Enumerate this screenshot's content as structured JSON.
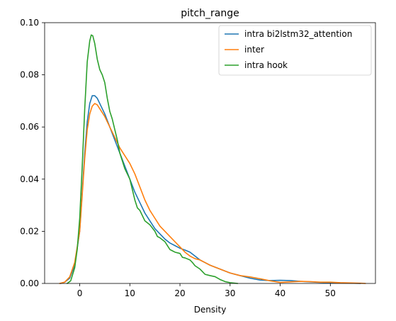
{
  "chart_data": {
    "type": "line",
    "title": "pitch_range",
    "xlabel": "Density",
    "ylabel": "",
    "xlim": [
      -7,
      59
    ],
    "ylim": [
      0,
      0.1
    ],
    "x_ticks": [
      0,
      10,
      20,
      30,
      40,
      50
    ],
    "y_ticks": [
      0.0,
      0.02,
      0.04,
      0.06,
      0.08,
      0.1
    ],
    "x_tick_labels": [
      "0",
      "10",
      "20",
      "30",
      "40",
      "50"
    ],
    "y_tick_labels": [
      "0.00",
      "0.02",
      "0.04",
      "0.06",
      "0.08",
      "0.10"
    ],
    "grid": false,
    "legend_position": "top-right",
    "series": [
      {
        "name": "intra bi2lstm32_attention",
        "color": "#1f77b4",
        "points": [
          [
            -3.8,
            0
          ],
          [
            -3,
            0.0005
          ],
          [
            -2,
            0.002
          ],
          [
            -1,
            0.007
          ],
          [
            0,
            0.02
          ],
          [
            0.5,
            0.035
          ],
          [
            1,
            0.05
          ],
          [
            1.5,
            0.062
          ],
          [
            2,
            0.069
          ],
          [
            2.5,
            0.072
          ],
          [
            3,
            0.072
          ],
          [
            3.5,
            0.071
          ],
          [
            4,
            0.069
          ],
          [
            5,
            0.065
          ],
          [
            6,
            0.06
          ],
          [
            7,
            0.055
          ],
          [
            8,
            0.05
          ],
          [
            9,
            0.045
          ],
          [
            10,
            0.04
          ],
          [
            11,
            0.035
          ],
          [
            12,
            0.031
          ],
          [
            13,
            0.027
          ],
          [
            14,
            0.024
          ],
          [
            15,
            0.021
          ],
          [
            16,
            0.019
          ],
          [
            17,
            0.017
          ],
          [
            18,
            0.0155
          ],
          [
            19,
            0.0145
          ],
          [
            20,
            0.0135
          ],
          [
            21,
            0.0128
          ],
          [
            22,
            0.012
          ],
          [
            23,
            0.0105
          ],
          [
            24,
            0.009
          ],
          [
            25,
            0.008
          ],
          [
            26,
            0.007
          ],
          [
            28,
            0.0055
          ],
          [
            30,
            0.004
          ],
          [
            32,
            0.003
          ],
          [
            34,
            0.002
          ],
          [
            36,
            0.0013
          ],
          [
            38,
            0.0011
          ],
          [
            40,
            0.0012
          ],
          [
            42,
            0.0011
          ],
          [
            44,
            0.0008
          ],
          [
            46,
            0.0006
          ],
          [
            48,
            0.0004
          ],
          [
            50,
            0.0003
          ],
          [
            52,
            0.0002
          ],
          [
            54,
            0.0001
          ],
          [
            56,
            0
          ]
        ]
      },
      {
        "name": "inter",
        "color": "#ff7f0e",
        "points": [
          [
            -4,
            0
          ],
          [
            -3,
            0.0005
          ],
          [
            -2,
            0.0025
          ],
          [
            -1,
            0.008
          ],
          [
            0,
            0.02
          ],
          [
            0.5,
            0.034
          ],
          [
            1,
            0.048
          ],
          [
            1.5,
            0.059
          ],
          [
            2,
            0.065
          ],
          [
            2.5,
            0.068
          ],
          [
            3,
            0.069
          ],
          [
            3.5,
            0.0685
          ],
          [
            4,
            0.067
          ],
          [
            5,
            0.064
          ],
          [
            6,
            0.06
          ],
          [
            7,
            0.056
          ],
          [
            8,
            0.052
          ],
          [
            9,
            0.049
          ],
          [
            10,
            0.046
          ],
          [
            11,
            0.042
          ],
          [
            12,
            0.037
          ],
          [
            13,
            0.032
          ],
          [
            14,
            0.028
          ],
          [
            15,
            0.025
          ],
          [
            16,
            0.022
          ],
          [
            17,
            0.02
          ],
          [
            18,
            0.018
          ],
          [
            19,
            0.016
          ],
          [
            20,
            0.014
          ],
          [
            21,
            0.012
          ],
          [
            22,
            0.0105
          ],
          [
            23,
            0.0095
          ],
          [
            24,
            0.009
          ],
          [
            25,
            0.008
          ],
          [
            26,
            0.007
          ],
          [
            28,
            0.0055
          ],
          [
            30,
            0.004
          ],
          [
            32,
            0.003
          ],
          [
            34,
            0.0025
          ],
          [
            36,
            0.0018
          ],
          [
            38,
            0.001
          ],
          [
            40,
            0.0004
          ],
          [
            42,
            0.0006
          ],
          [
            44,
            0.0008
          ],
          [
            46,
            0.0007
          ],
          [
            48,
            0.0005
          ],
          [
            50,
            0.0005
          ],
          [
            52,
            0.0003
          ],
          [
            54,
            0.0002
          ],
          [
            56,
            0.0001
          ],
          [
            57,
            0
          ]
        ]
      },
      {
        "name": "intra hook",
        "color": "#2ca02c",
        "points": [
          [
            -2.5,
            0
          ],
          [
            -1.8,
            0.001
          ],
          [
            -1,
            0.006
          ],
          [
            -0.5,
            0.013
          ],
          [
            0,
            0.025
          ],
          [
            0.5,
            0.045
          ],
          [
            1,
            0.067
          ],
          [
            1.5,
            0.085
          ],
          [
            2,
            0.093
          ],
          [
            2.3,
            0.0953
          ],
          [
            2.6,
            0.095
          ],
          [
            3,
            0.092
          ],
          [
            3.5,
            0.086
          ],
          [
            4,
            0.082
          ],
          [
            4.5,
            0.08
          ],
          [
            5,
            0.077
          ],
          [
            5.5,
            0.071
          ],
          [
            6,
            0.066
          ],
          [
            6.5,
            0.063
          ],
          [
            7,
            0.059
          ],
          [
            7.5,
            0.055
          ],
          [
            8,
            0.05
          ],
          [
            8.5,
            0.047
          ],
          [
            9,
            0.044
          ],
          [
            10,
            0.04
          ],
          [
            10.5,
            0.036
          ],
          [
            11,
            0.032
          ],
          [
            11.5,
            0.029
          ],
          [
            12,
            0.028
          ],
          [
            12.5,
            0.026
          ],
          [
            13,
            0.024
          ],
          [
            14,
            0.0225
          ],
          [
            15,
            0.02
          ],
          [
            15.5,
            0.018
          ],
          [
            16,
            0.0175
          ],
          [
            17,
            0.016
          ],
          [
            17.5,
            0.0145
          ],
          [
            18,
            0.013
          ],
          [
            18.5,
            0.0125
          ],
          [
            19,
            0.012
          ],
          [
            20,
            0.0115
          ],
          [
            20.5,
            0.01
          ],
          [
            21,
            0.0098
          ],
          [
            22,
            0.009
          ],
          [
            22.5,
            0.008
          ],
          [
            23,
            0.0068
          ],
          [
            24,
            0.0055
          ],
          [
            24.5,
            0.0045
          ],
          [
            25,
            0.0035
          ],
          [
            26,
            0.003
          ],
          [
            27,
            0.0026
          ],
          [
            28,
            0.0015
          ],
          [
            29,
            0.0007
          ],
          [
            30,
            0.0003
          ],
          [
            31,
            0.0001
          ],
          [
            31.5,
            0
          ]
        ]
      }
    ]
  }
}
